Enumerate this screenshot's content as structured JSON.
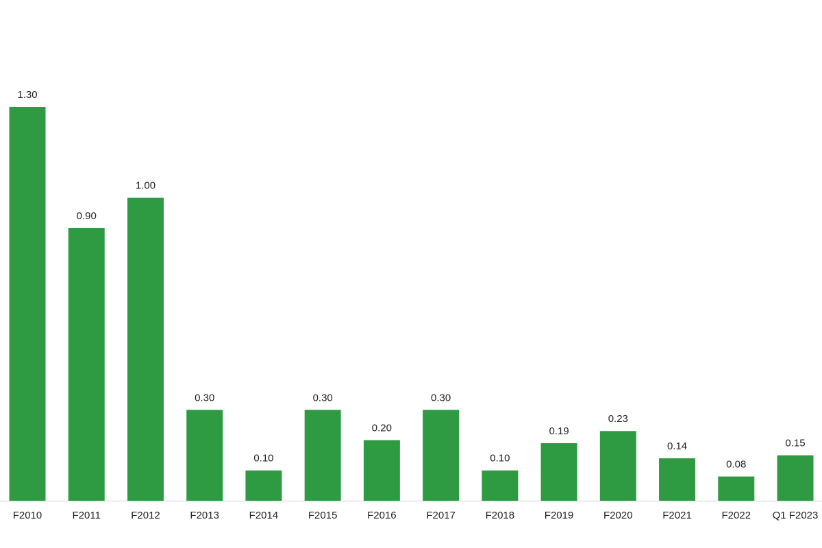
{
  "chart_data": {
    "type": "bar",
    "categories": [
      "F2010",
      "F2011",
      "F2012",
      "F2013",
      "F2014",
      "F2015",
      "F2016",
      "F2017",
      "F2018",
      "F2019",
      "F2020",
      "F2021",
      "F2022",
      "Q1 F2023"
    ],
    "values": [
      1.3,
      0.9,
      1.0,
      0.3,
      0.1,
      0.3,
      0.2,
      0.3,
      0.1,
      0.19,
      0.23,
      0.14,
      0.08,
      0.15
    ],
    "value_labels": [
      "1.30",
      "0.90",
      "1.00",
      "0.30",
      "0.10",
      "0.30",
      "0.20",
      "0.30",
      "0.10",
      "0.19",
      "0.23",
      "0.14",
      "0.08",
      "0.15"
    ],
    "color": "#2e9b43",
    "ylim": [
      0,
      1.3
    ]
  }
}
